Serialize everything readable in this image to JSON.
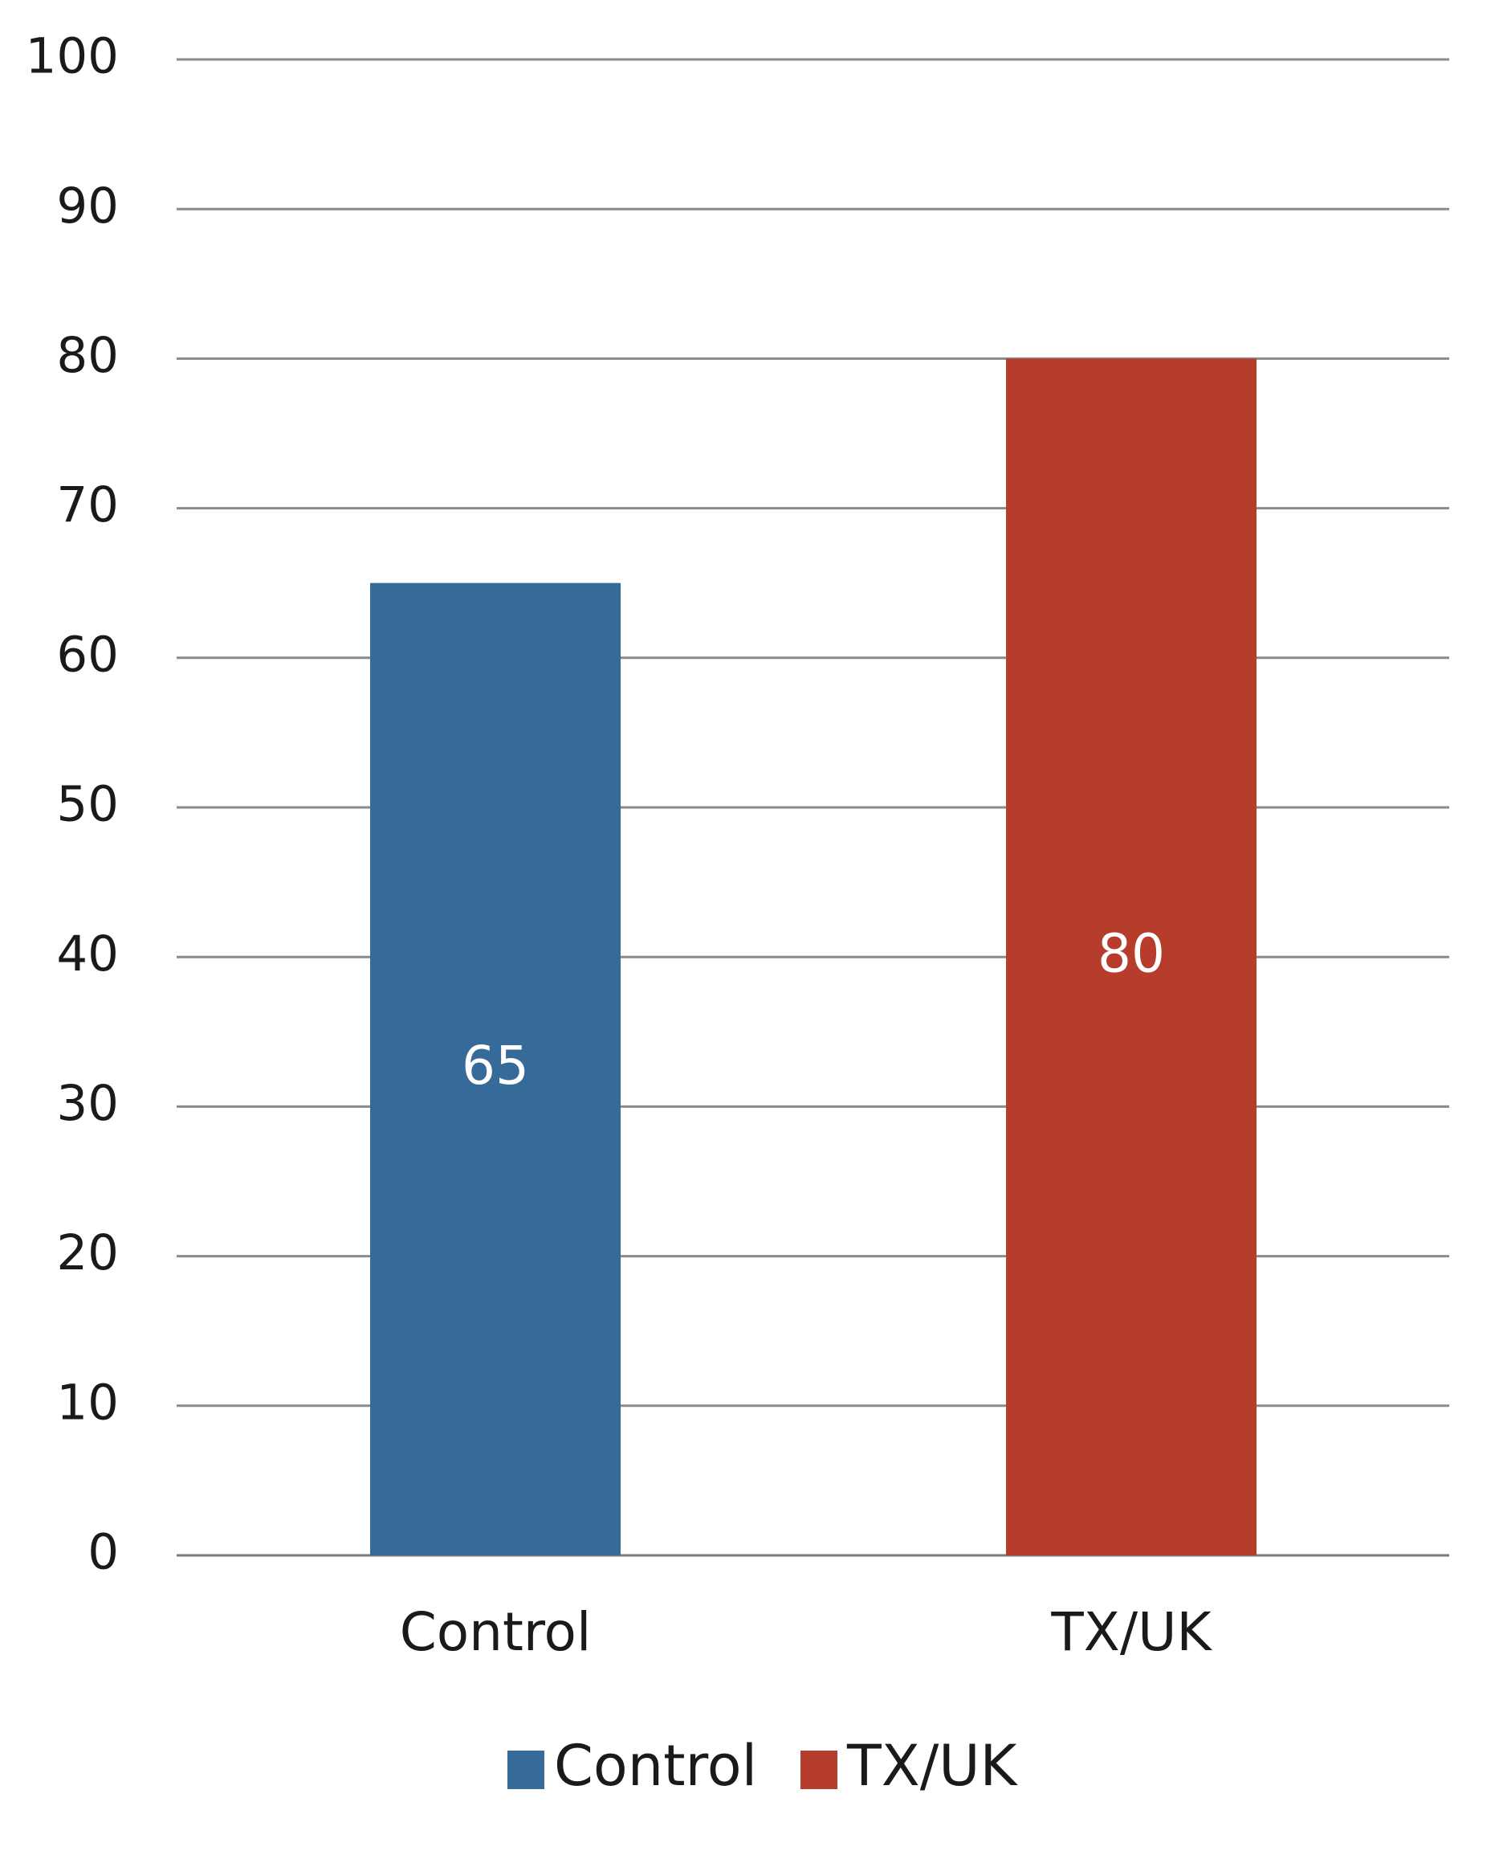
{
  "chart_data": {
    "type": "bar",
    "categories": [
      "Control",
      "TX/UK"
    ],
    "values": [
      65,
      80
    ],
    "data_labels": [
      "65",
      "80"
    ],
    "colors": [
      "#366a99",
      "#b63d2b"
    ],
    "title": "",
    "xlabel": "",
    "ylabel": "",
    "ylim": [
      0,
      100
    ],
    "yticks": [
      0,
      10,
      20,
      30,
      40,
      50,
      60,
      70,
      80,
      90,
      100
    ],
    "ytick_labels": [
      "0",
      "10",
      "20",
      "30",
      "40",
      "50",
      "60",
      "70",
      "80",
      "90",
      "100"
    ],
    "grid": true,
    "legend": {
      "position": "bottom",
      "entries": [
        "Control",
        "TX/UK"
      ]
    }
  }
}
